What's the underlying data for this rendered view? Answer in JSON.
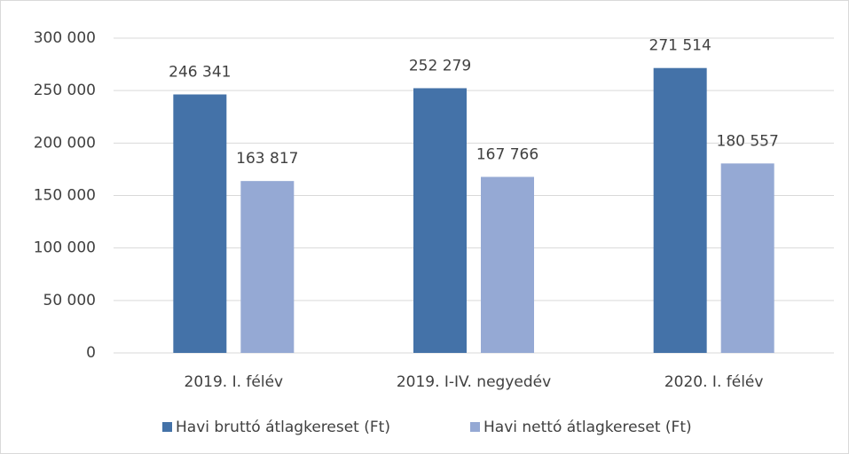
{
  "chart_data": {
    "type": "bar",
    "categories": [
      "2019. I. félév",
      "2019. I-IV. negyedév",
      "2020. I. félév"
    ],
    "series": [
      {
        "name": "Havi bruttó átlagkereset (Ft)",
        "color": "#4472a8",
        "values": [
          246341,
          252279,
          271514
        ],
        "value_labels": [
          "246 341",
          "252 279",
          "271 514"
        ]
      },
      {
        "name": "Havi nettó átlagkereset (Ft)",
        "color": "#95a9d4",
        "values": [
          163817,
          167766,
          180557
        ],
        "value_labels": [
          "163 817",
          "167 766",
          "180 557"
        ]
      }
    ],
    "ylim": [
      0,
      300000
    ],
    "yticks": [
      0,
      {
        "value": 50000,
        "label": "50 000"
      },
      {
        "value": 100000,
        "label": "100 000"
      },
      {
        "value": 150000,
        "label": "150 000"
      },
      {
        "value": 200000,
        "label": "200 000"
      },
      {
        "value": 250000,
        "label": "250 000"
      },
      {
        "value": 300000,
        "label": "300 000"
      }
    ],
    "grid": true,
    "legend": "bottom"
  }
}
